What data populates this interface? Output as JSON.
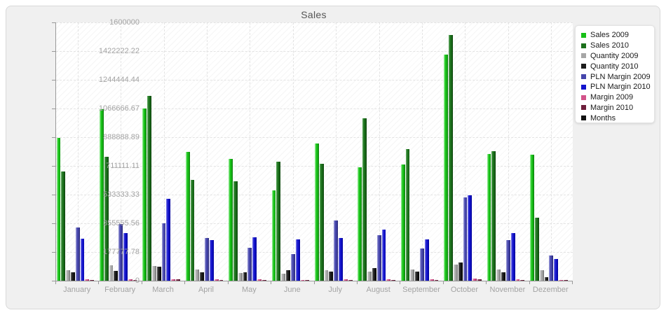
{
  "chart_data": {
    "type": "bar",
    "title": "Sales",
    "categories": [
      "January",
      "February",
      "March",
      "April",
      "May",
      "June",
      "July",
      "August",
      "September",
      "October",
      "November",
      "Dezember"
    ],
    "y_ticks": [
      "1600000",
      "1422222.22",
      "1244444.44",
      "1066666.67",
      "888888.89",
      "711111.11",
      "533333.33",
      "355555.56",
      "177777.78",
      "0"
    ],
    "ylim": [
      0,
      1600000
    ],
    "grid": "dashed horizontal at y ticks, dashed vertical at month centers",
    "legend_position": "top-right",
    "plot_hatch": "light diagonal",
    "series": [
      {
        "name": "Sales 2009",
        "color": "#17c017",
        "light": "#86e886",
        "dark": "#0e860e",
        "values": [
          884000,
          1063000,
          1065000,
          798000,
          754000,
          559000,
          851000,
          704000,
          718000,
          1400000,
          783000,
          780000
        ]
      },
      {
        "name": "Sales 2010",
        "color": "#1b701b",
        "light": "#55a055",
        "dark": "#0d4a0d",
        "values": [
          675000,
          769000,
          1145000,
          626000,
          614000,
          737000,
          725000,
          1007000,
          815000,
          1520000,
          802000,
          389000
        ]
      },
      {
        "name": "Quantity 2009",
        "color": "#a6a6a6",
        "light": "#d2d2d2",
        "dark": "#7a7a7a",
        "values": [
          65000,
          94000,
          90000,
          68000,
          46000,
          42000,
          65000,
          56000,
          68000,
          100000,
          68000,
          64000
        ]
      },
      {
        "name": "Quantity 2010",
        "color": "#1c1c1c",
        "light": "#5a5a5a",
        "dark": "#000000",
        "values": [
          51000,
          61000,
          85000,
          53000,
          53000,
          64000,
          56000,
          78000,
          56000,
          114000,
          53000,
          20000
        ]
      },
      {
        "name": "PLN Margin 2009",
        "color": "#4545ab",
        "light": "#8f8fd2",
        "dark": "#2b2b7e",
        "values": [
          328000,
          350000,
          357000,
          263000,
          202000,
          165000,
          374000,
          280000,
          198000,
          516000,
          253000,
          157000
        ]
      },
      {
        "name": "PLN Margin 2010",
        "color": "#1414cc",
        "light": "#6a6ae4",
        "dark": "#0000a0",
        "values": [
          260000,
          295000,
          506000,
          251000,
          267000,
          256000,
          263000,
          318000,
          256000,
          530000,
          295000,
          133000
        ]
      },
      {
        "name": "Margin 2009",
        "color": "#d2538a",
        "light": "#eda2c2",
        "dark": "#9e2f60",
        "values": [
          8000,
          8000,
          9000,
          7000,
          7000,
          6000,
          8000,
          8000,
          7000,
          12000,
          8000,
          6000
        ]
      },
      {
        "name": "Margin 2010",
        "color": "#6e1f3c",
        "light": "#a05670",
        "dark": "#451026",
        "values": [
          6000,
          6000,
          7000,
          5000,
          5000,
          5000,
          6000,
          6000,
          5000,
          9000,
          6000,
          4000
        ]
      },
      {
        "name": "Months",
        "color": "#111111",
        "light": "#555555",
        "dark": "#000000",
        "values": [
          0,
          0,
          0,
          0,
          0,
          0,
          0,
          0,
          0,
          0,
          0,
          0
        ]
      }
    ]
  },
  "colors": {
    "panel_bg": "#f0f0f0",
    "panel_border": "#d9d9d9",
    "plot_bg": "#ffffff",
    "axis": "#999999",
    "gridline": "#e3e3e3",
    "tick_label": "#a3a3a3",
    "title_text": "#555555",
    "legend_bg": "#ffffff",
    "legend_text": "#1a1a1a"
  }
}
